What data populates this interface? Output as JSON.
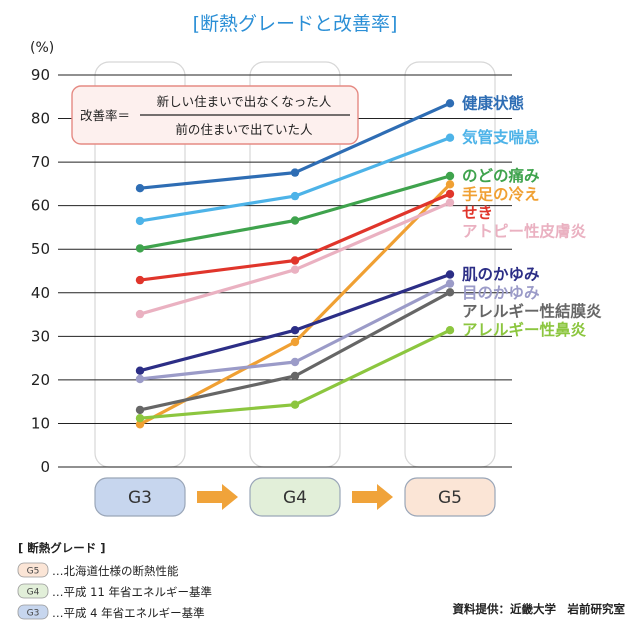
{
  "title": "[断熱グレードと改善率]",
  "formula": {
    "lhs": "改善率＝",
    "numerator": "新しい住まいで出なくなった人",
    "denominator": "前の住まいで出ていた人"
  },
  "legend_box": {
    "heading": "[ 断熱グレード ]",
    "items": [
      {
        "badge": "G5",
        "text": "…北海道仕様の断熱性能",
        "color": "#fbe5d6"
      },
      {
        "badge": "G4",
        "text": "…平成 11 年省エネルギー基準",
        "color": "#e2efd9"
      },
      {
        "badge": "G3",
        "text": "…平成 4 年省エネルギー基準",
        "color": "#c7d6ee"
      }
    ]
  },
  "source": "資料提供：近畿大学　岩前研究室",
  "grade_buttons": [
    {
      "label": "G3",
      "color": "#c7d6ee"
    },
    {
      "label": "G4",
      "color": "#e2efd9"
    },
    {
      "label": "G5",
      "color": "#fbe5d6"
    }
  ],
  "arrow_color": "#f0a33a",
  "chart_data": {
    "type": "line",
    "ylabel": "(%)",
    "ylim": [
      0,
      90
    ],
    "yticks": [
      "0",
      "10",
      "20",
      "30",
      "40",
      "50",
      "60",
      "70",
      "80",
      "90"
    ],
    "categories": [
      "G3",
      "G4",
      "G5"
    ],
    "grid": true,
    "series": [
      {
        "name": "健康状態",
        "color": "#2e6db4",
        "values": [
          64,
          67.6,
          83.5
        ]
      },
      {
        "name": "気管支喘息",
        "color": "#4db3e8",
        "values": [
          56.5,
          62.2,
          75.6
        ]
      },
      {
        "name": "のどの痛み",
        "color": "#3fa34d",
        "values": [
          50.2,
          56.6,
          66.8
        ]
      },
      {
        "name": "手足の冷え",
        "color": "#f0a033",
        "values": [
          9.8,
          28.7,
          64.9
        ]
      },
      {
        "name": "せき",
        "color": "#e0352b",
        "values": [
          42.9,
          47.4,
          62.7
        ]
      },
      {
        "name": "アトピー性皮膚炎",
        "color": "#eab1c1",
        "values": [
          35.1,
          45.3,
          60.7
        ]
      },
      {
        "name": "肌のかゆみ",
        "color": "#2c2e86",
        "values": [
          22.1,
          31.4,
          44.2
        ]
      },
      {
        "name": "目のかゆみ",
        "color": "#9b9bc8",
        "values": [
          20.2,
          24.1,
          42.1
        ]
      },
      {
        "name": "アレルギー性結膜炎",
        "color": "#666666",
        "values": [
          13.1,
          20.9,
          40.1
        ]
      },
      {
        "name": "アレルギー性鼻炎",
        "color": "#8cc63f",
        "values": [
          11.2,
          14.3,
          31.4
        ]
      }
    ]
  }
}
